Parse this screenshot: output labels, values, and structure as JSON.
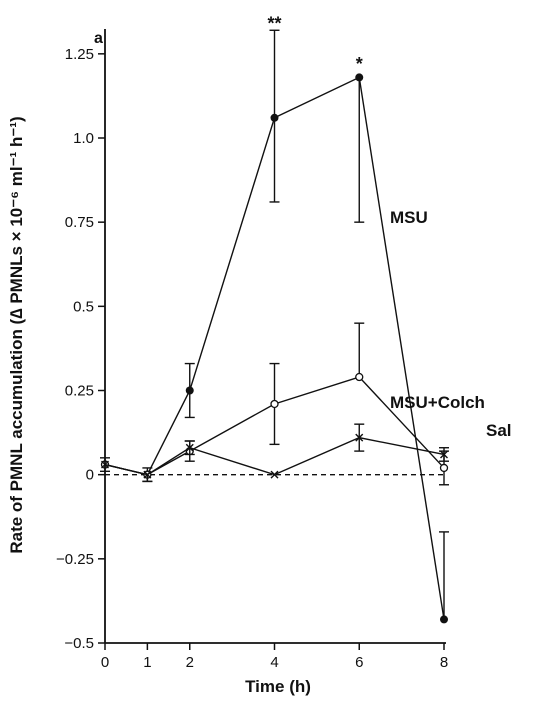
{
  "chart_data": {
    "type": "line",
    "panel_label": "a",
    "xlabel": "Time (h)",
    "ylabel": "Rate of PMNL accumulation (∆ PMNLs × 10⁻⁶ ml⁻¹ h⁻¹)",
    "xlim": [
      0,
      8
    ],
    "ylim": [
      -0.5,
      1.3
    ],
    "x_ticks": [
      0,
      1,
      2,
      4,
      6,
      8
    ],
    "x_tick_labels": [
      "0",
      "1",
      "2",
      "4",
      "6",
      "8"
    ],
    "y_ticks": [
      -0.5,
      -0.25,
      0,
      0.25,
      0.5,
      0.75,
      1.0,
      1.25
    ],
    "y_tick_labels": [
      "−0.5",
      "−0.25",
      "0",
      "0.25",
      "0.5",
      "0.75",
      "1.0",
      "1.25"
    ],
    "baseline": {
      "y": 0,
      "style": "dashed"
    },
    "series": [
      {
        "name": "MSU",
        "marker": "filled-circle",
        "points": [
          {
            "x": 0,
            "y": 0.03,
            "err_up": 0.02
          },
          {
            "x": 1,
            "y": 0.0,
            "err_up": 0.02,
            "err_down": 0.02
          },
          {
            "x": 2,
            "y": 0.25,
            "err_up": 0.08,
            "err_down": 0.08
          },
          {
            "x": 4,
            "y": 1.06,
            "err_up": 0.26,
            "err_down": 0.25
          },
          {
            "x": 6,
            "y": 1.18,
            "err_down": 0.43
          },
          {
            "x": 8,
            "y": -0.43,
            "err_up": 0.26
          }
        ]
      },
      {
        "name": "MSU+Colch",
        "marker": "open-circle",
        "points": [
          {
            "x": 0,
            "y": 0.03
          },
          {
            "x": 1,
            "y": 0.0
          },
          {
            "x": 2,
            "y": 0.07,
            "err_up": 0.03,
            "err_down": 0.03
          },
          {
            "x": 4,
            "y": 0.21,
            "err_up": 0.12,
            "err_down": 0.12
          },
          {
            "x": 6,
            "y": 0.29,
            "err_up": 0.16
          },
          {
            "x": 8,
            "y": 0.02,
            "err_up": 0.05,
            "err_down": 0.05
          }
        ]
      },
      {
        "name": "Sal",
        "marker": "cross",
        "points": [
          {
            "x": 0,
            "y": 0.03,
            "err_down": 0.02
          },
          {
            "x": 1,
            "y": 0.0,
            "err_down": 0.02
          },
          {
            "x": 2,
            "y": 0.08,
            "err_up": 0.02,
            "err_down": 0.02
          },
          {
            "x": 4,
            "y": 0.0
          },
          {
            "x": 6,
            "y": 0.11,
            "err_up": 0.04,
            "err_down": 0.04
          },
          {
            "x": 8,
            "y": 0.06,
            "err_up": 0.02,
            "err_down": 0.02
          }
        ]
      }
    ],
    "significance_markers": [
      {
        "x": 4,
        "y": 1.34,
        "text": "**"
      },
      {
        "x": 6,
        "y": 1.22,
        "text": "*"
      }
    ]
  }
}
